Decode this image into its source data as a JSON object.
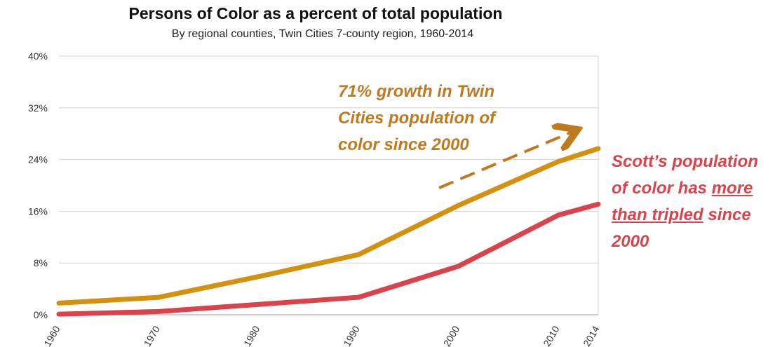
{
  "chart_data": {
    "type": "line",
    "title": "Persons of Color as a percent of total population",
    "subtitle": "By regional counties, Twin Cities 7-county region, 1960-2014",
    "xlabel": "",
    "ylabel": "",
    "x": [
      1960,
      1970,
      1980,
      1990,
      2000,
      2010,
      2014
    ],
    "x_tick_labels": [
      "1960",
      "1970",
      "1980",
      "1990",
      "2000",
      "2010",
      "2014"
    ],
    "y_tick_labels": [
      "0%",
      "8%",
      "16%",
      "24%",
      "32%",
      "40%"
    ],
    "y_ticks": [
      0,
      8,
      16,
      24,
      32,
      40
    ],
    "ylim": [
      0,
      40
    ],
    "xlim": [
      1960,
      2014
    ],
    "grid": true,
    "series": [
      {
        "color": "#d4900f",
        "values": [
          1.8,
          2.7,
          5.9,
          9.3,
          16.9,
          23.7,
          25.7
        ]
      },
      {
        "color": "#d9434b",
        "values": [
          0.1,
          0.5,
          1.6,
          2.7,
          7.5,
          15.4,
          17.1
        ]
      }
    ],
    "annotations": {
      "growth": {
        "lines": [
          "71% growth in Twin",
          "Cities population of",
          "color since 2000"
        ],
        "color": "#bf7a1f"
      },
      "scott": {
        "l1": "Scott’s population",
        "l2a": "of color has ",
        "l2b": "more",
        "l3a": "than tripled",
        "l3b": " since",
        "l4": "2000",
        "color": "#d9434b"
      }
    }
  }
}
